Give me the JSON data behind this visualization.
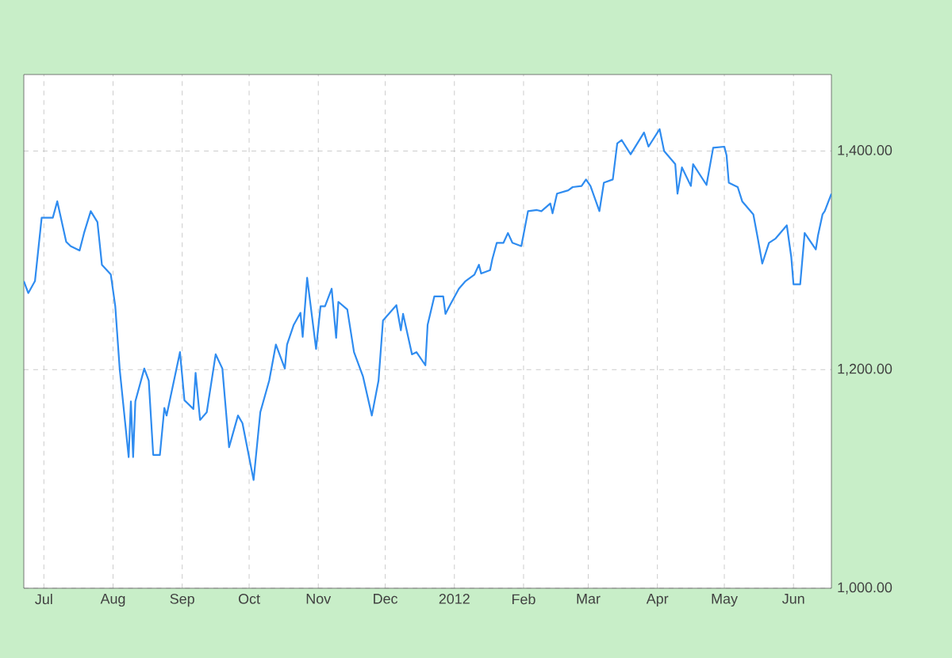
{
  "chart_data": {
    "type": "line",
    "color": "#2f8cf0",
    "grid": true,
    "marker": "none",
    "line_style": "solid",
    "xlim": [
      "2011-06-22",
      "2012-06-18"
    ],
    "ylim": [
      1000,
      1470
    ],
    "yticks": [
      {
        "value": 1000,
        "label": "1,000.00"
      },
      {
        "value": 1200,
        "label": "1,200.00"
      },
      {
        "value": 1400,
        "label": "1,400.00"
      }
    ],
    "xticks": [
      {
        "value": "2011-07-01",
        "label": "Jul"
      },
      {
        "value": "2011-08-01",
        "label": "Aug"
      },
      {
        "value": "2011-09-01",
        "label": "Sep"
      },
      {
        "value": "2011-10-01",
        "label": "Oct"
      },
      {
        "value": "2011-11-01",
        "label": "Nov"
      },
      {
        "value": "2011-12-01",
        "label": "Dec"
      },
      {
        "value": "2012-01-01",
        "label": "2012"
      },
      {
        "value": "2012-02-01",
        "label": "Feb"
      },
      {
        "value": "2012-03-01",
        "label": "Mar"
      },
      {
        "value": "2012-04-01",
        "label": "Apr"
      },
      {
        "value": "2012-05-01",
        "label": "May"
      },
      {
        "value": "2012-06-01",
        "label": "Jun"
      }
    ],
    "x": [
      "2011-06-22",
      "2011-06-24",
      "2011-06-27",
      "2011-06-30",
      "2011-07-05",
      "2011-07-07",
      "2011-07-11",
      "2011-07-13",
      "2011-07-17",
      "2011-07-19",
      "2011-07-22",
      "2011-07-25",
      "2011-07-27",
      "2011-07-31",
      "2011-08-02",
      "2011-08-04",
      "2011-08-08",
      "2011-08-09",
      "2011-08-10",
      "2011-08-11",
      "2011-08-15",
      "2011-08-17",
      "2011-08-19",
      "2011-08-22",
      "2011-08-24",
      "2011-08-25",
      "2011-08-31",
      "2011-09-02",
      "2011-09-06",
      "2011-09-07",
      "2011-09-09",
      "2011-09-12",
      "2011-09-16",
      "2011-09-19",
      "2011-09-22",
      "2011-09-26",
      "2011-09-28",
      "2011-10-03",
      "2011-10-06",
      "2011-10-10",
      "2011-10-13",
      "2011-10-17",
      "2011-10-18",
      "2011-10-21",
      "2011-10-24",
      "2011-10-25",
      "2011-10-27",
      "2011-10-31",
      "2011-11-02",
      "2011-11-04",
      "2011-11-07",
      "2011-11-09",
      "2011-11-10",
      "2011-11-14",
      "2011-11-17",
      "2011-11-21",
      "2011-11-25",
      "2011-11-28",
      "2011-11-30",
      "2011-12-06",
      "2011-12-08",
      "2011-12-09",
      "2011-12-13",
      "2011-12-15",
      "2011-12-19",
      "2011-12-20",
      "2011-12-23",
      "2011-12-27",
      "2011-12-28",
      "2011-12-30",
      "2012-01-03",
      "2012-01-06",
      "2012-01-10",
      "2012-01-12",
      "2012-01-13",
      "2012-01-17",
      "2012-01-18",
      "2012-01-20",
      "2012-01-23",
      "2012-01-25",
      "2012-01-27",
      "2012-01-31",
      "2012-02-03",
      "2012-02-07",
      "2012-02-09",
      "2012-02-13",
      "2012-02-14",
      "2012-02-16",
      "2012-02-21",
      "2012-02-23",
      "2012-02-27",
      "2012-02-29",
      "2012-03-02",
      "2012-03-06",
      "2012-03-08",
      "2012-03-12",
      "2012-03-14",
      "2012-03-16",
      "2012-03-20",
      "2012-03-26",
      "2012-03-28",
      "2012-04-02",
      "2012-04-04",
      "2012-04-09",
      "2012-04-10",
      "2012-04-12",
      "2012-04-16",
      "2012-04-17",
      "2012-04-23",
      "2012-04-26",
      "2012-05-01",
      "2012-05-02",
      "2012-05-03",
      "2012-05-07",
      "2012-05-09",
      "2012-05-14",
      "2012-05-16",
      "2012-05-18",
      "2012-05-21",
      "2012-05-24",
      "2012-05-29",
      "2012-05-31",
      "2012-06-01",
      "2012-06-04",
      "2012-06-06",
      "2012-06-11",
      "2012-06-12",
      "2012-06-14",
      "2012-06-15",
      "2012-06-18"
    ],
    "values": [
      1281,
      1270,
      1281,
      1339,
      1339,
      1354,
      1317,
      1313,
      1309,
      1325,
      1345,
      1335,
      1296,
      1287,
      1258,
      1200,
      1120,
      1171,
      1120,
      1171,
      1201,
      1190,
      1122,
      1122,
      1165,
      1158,
      1216,
      1172,
      1164,
      1197,
      1154,
      1161,
      1214,
      1201,
      1129,
      1158,
      1151,
      1099,
      1161,
      1190,
      1223,
      1201,
      1223,
      1241,
      1252,
      1230,
      1284,
      1219,
      1258,
      1258,
      1274,
      1229,
      1262,
      1255,
      1216,
      1194,
      1158,
      1190,
      1245,
      1259,
      1236,
      1251,
      1214,
      1216,
      1204,
      1241,
      1267,
      1267,
      1251,
      1259,
      1274,
      1281,
      1287,
      1296,
      1288,
      1291,
      1301,
      1316,
      1316,
      1325,
      1316,
      1313,
      1345,
      1346,
      1345,
      1352,
      1343,
      1361,
      1364,
      1367,
      1368,
      1374,
      1368,
      1345,
      1371,
      1374,
      1407,
      1410,
      1397,
      1417,
      1404,
      1420,
      1400,
      1388,
      1361,
      1385,
      1368,
      1388,
      1369,
      1403,
      1404,
      1396,
      1371,
      1367,
      1354,
      1342,
      1320,
      1297,
      1316,
      1320,
      1332,
      1303,
      1278,
      1278,
      1325,
      1310,
      1323,
      1342,
      1345,
      1361
    ]
  }
}
